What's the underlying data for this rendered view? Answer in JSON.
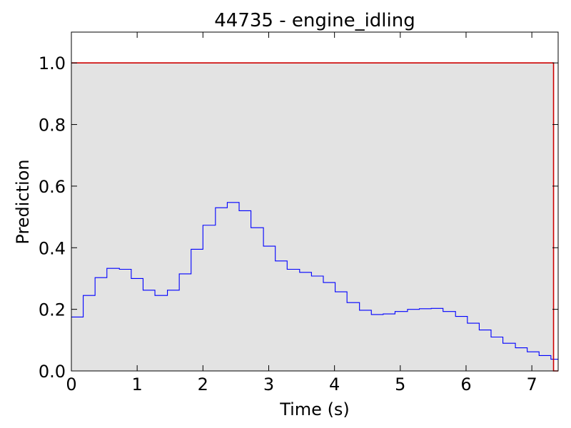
{
  "chart_data": {
    "type": "line",
    "title": "44735 - engine_idling",
    "xlabel": "Time (s)",
    "ylabel": "Prediction",
    "xlim": [
      0,
      7.4
    ],
    "ylim": [
      0,
      1.1
    ],
    "grid": false,
    "x_ticks": [
      "0",
      "1",
      "2",
      "3",
      "4",
      "5",
      "6",
      "7"
    ],
    "y_ticks": [
      "0.0",
      "0.2",
      "0.4",
      "0.6",
      "0.8",
      "1.0"
    ],
    "shaded_region": {
      "x": [
        0,
        7.33
      ],
      "y": [
        0,
        1.0
      ],
      "color": "#e3e3e3"
    },
    "series": [
      {
        "style": "step",
        "color": "#0000ff",
        "x": [
          0,
          0.18,
          0.36,
          0.54,
          0.73,
          0.91,
          1.09,
          1.27,
          1.46,
          1.64,
          1.82,
          2.0,
          2.19,
          2.37,
          2.55,
          2.73,
          2.92,
          3.1,
          3.28,
          3.47,
          3.65,
          3.83,
          4.01,
          4.19,
          4.38,
          4.56,
          4.74,
          4.92,
          5.11,
          5.29,
          5.47,
          5.65,
          5.84,
          6.02,
          6.2,
          6.38,
          6.56,
          6.75,
          6.93,
          7.11,
          7.29
        ],
        "y": [
          0.175,
          0.245,
          0.303,
          0.333,
          0.33,
          0.3,
          0.262,
          0.245,
          0.262,
          0.315,
          0.395,
          0.473,
          0.53,
          0.547,
          0.52,
          0.465,
          0.405,
          0.357,
          0.33,
          0.32,
          0.308,
          0.287,
          0.257,
          0.222,
          0.197,
          0.183,
          0.185,
          0.193,
          0.2,
          0.202,
          0.203,
          0.193,
          0.177,
          0.155,
          0.133,
          0.11,
          0.09,
          0.075,
          0.062,
          0.05,
          0.038
        ],
        "x_end": 7.4
      },
      {
        "style": "step",
        "color": "#cc0000",
        "x": [
          0,
          7.33
        ],
        "y": [
          1.0,
          0.0
        ],
        "x_end": 7.4
      }
    ]
  }
}
